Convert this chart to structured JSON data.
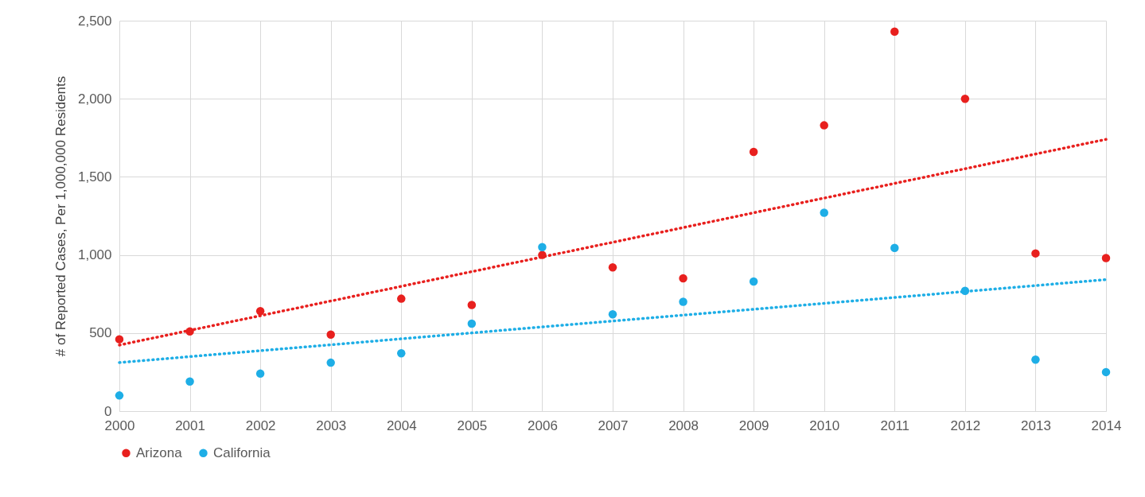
{
  "chart_data": {
    "type": "scatter",
    "ylabel": "# of Reported Cases, Per 1,000,000 Residents",
    "x": [
      2000,
      2001,
      2002,
      2003,
      2004,
      2005,
      2006,
      2007,
      2008,
      2009,
      2010,
      2011,
      2012,
      2013,
      2014
    ],
    "series": [
      {
        "name": "Arizona",
        "color": "#e8201e",
        "marker": "circle",
        "values": [
          460,
          510,
          640,
          490,
          720,
          680,
          1000,
          920,
          850,
          1660,
          1830,
          2430,
          2000,
          1010,
          980
        ]
      },
      {
        "name": "California",
        "color": "#1eaee6",
        "marker": "circle",
        "values": [
          100,
          190,
          240,
          310,
          370,
          560,
          1050,
          620,
          700,
          830,
          1270,
          1045,
          770,
          330,
          250
        ]
      },
      {
        "type": "line",
        "color": "#e8201e",
        "line_style": "dotted",
        "values": [
          423,
          517,
          611,
          705,
          799,
          893,
          987,
          1081,
          1175,
          1270,
          1364,
          1458,
          1552,
          1646,
          1740
        ]
      },
      {
        "type": "line",
        "color": "#1eaee6",
        "line_style": "dotted",
        "values": [
          311,
          349,
          387,
          425,
          463,
          501,
          539,
          577,
          615,
          652,
          690,
          728,
          766,
          804,
          842
        ]
      }
    ],
    "xlim": [
      2000,
      2014
    ],
    "xticks": [
      2000,
      2001,
      2002,
      2003,
      2004,
      2005,
      2006,
      2007,
      2008,
      2009,
      2010,
      2011,
      2012,
      2013,
      2014
    ],
    "ylim": [
      0,
      2500
    ],
    "yticks": [
      0,
      500,
      {
        "value": 1000,
        "label": "1,000"
      },
      {
        "value": 1500,
        "label": "1,500"
      },
      {
        "value": 2000,
        "label": "2,000"
      },
      {
        "value": 2500,
        "label": "2,500"
      }
    ],
    "grid": true,
    "legend": "bottom"
  }
}
